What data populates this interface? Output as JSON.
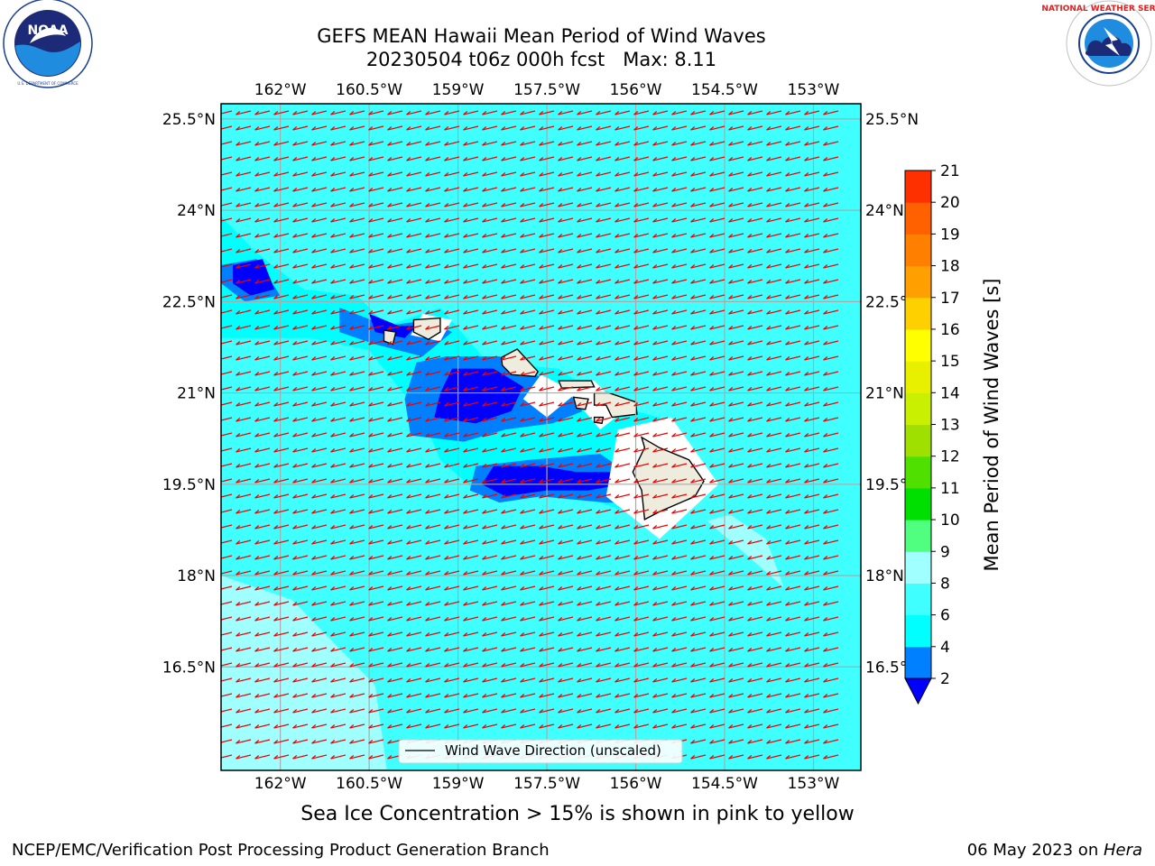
{
  "header": {
    "title_line1": "GEFS MEAN Hawaii Mean Period of Wind Waves",
    "title_line2": "20230504 t06z 000h fcst   Max: 8.11"
  },
  "logos": {
    "left": {
      "name": "NOAA",
      "ring_text": "NATIONAL OCEANIC AND ATMOSPHERIC ADMINISTRATION",
      "bottom_text": "U.S. DEPARTMENT OF COMMERCE"
    },
    "right": {
      "ring_text": "NATIONAL WEATHER SERVICE"
    }
  },
  "footer": {
    "left": "NCEP/EMC/Verification Post Processing Product Generation Branch",
    "date": "06 May 2023 on ",
    "host": "Hera"
  },
  "note": "Sea Ice Concentration > 15% is shown in pink to yellow",
  "chart_data": {
    "type": "heatmap",
    "title": "GEFS MEAN Hawaii Mean Period of Wind Waves",
    "subtitle": "20230504 t06z 000h fcst   Max: 8.11",
    "x_ticks": [
      -162,
      -160.5,
      -159,
      -157.5,
      -156,
      -154.5,
      -153
    ],
    "x_tick_labels": [
      "162°W",
      "160.5°W",
      "159°W",
      "157.5°W",
      "156°W",
      "154.5°W",
      "153°W"
    ],
    "y_ticks": [
      25.5,
      24,
      22.5,
      21,
      19.5,
      18,
      16.5
    ],
    "y_tick_labels": [
      "25.5°N",
      "24°N",
      "22.5°N",
      "21°N",
      "19.5°N",
      "18°N",
      "16.5°N"
    ],
    "xlim": [
      -163,
      -152.2
    ],
    "ylim": [
      14.8,
      25.75
    ],
    "grid": true,
    "legend": {
      "label": "Wind Wave Direction (unscaled)",
      "placement": "lower-center"
    },
    "colorbar": {
      "label": "Mean Period of Wind Waves [s]",
      "ticks": [
        2,
        4,
        6,
        8,
        9,
        10,
        11,
        12,
        13,
        14,
        15,
        16,
        17,
        18,
        19,
        20,
        21
      ],
      "colors": [
        "#0000ff",
        "#0080ff",
        "#00ffff",
        "#40ffff",
        "#a0ffff",
        "#50ff80",
        "#00e000",
        "#50e000",
        "#a0e000",
        "#c8f000",
        "#e8f000",
        "#ffff00",
        "#ffd000",
        "#ffa000",
        "#ff8000",
        "#ff6000",
        "#ff3000",
        "#ff0000"
      ],
      "under_color": "#0000ff",
      "placement": "right"
    },
    "background_period_s": 5,
    "wind_wave_direction": "from the east-northeast (trade-wind)",
    "max": 8.11,
    "islands": [
      "Niihau",
      "Kauai",
      "Oahu",
      "Molokai",
      "Lanai",
      "Maui",
      "Kahoolawe",
      "Hawaii"
    ]
  }
}
